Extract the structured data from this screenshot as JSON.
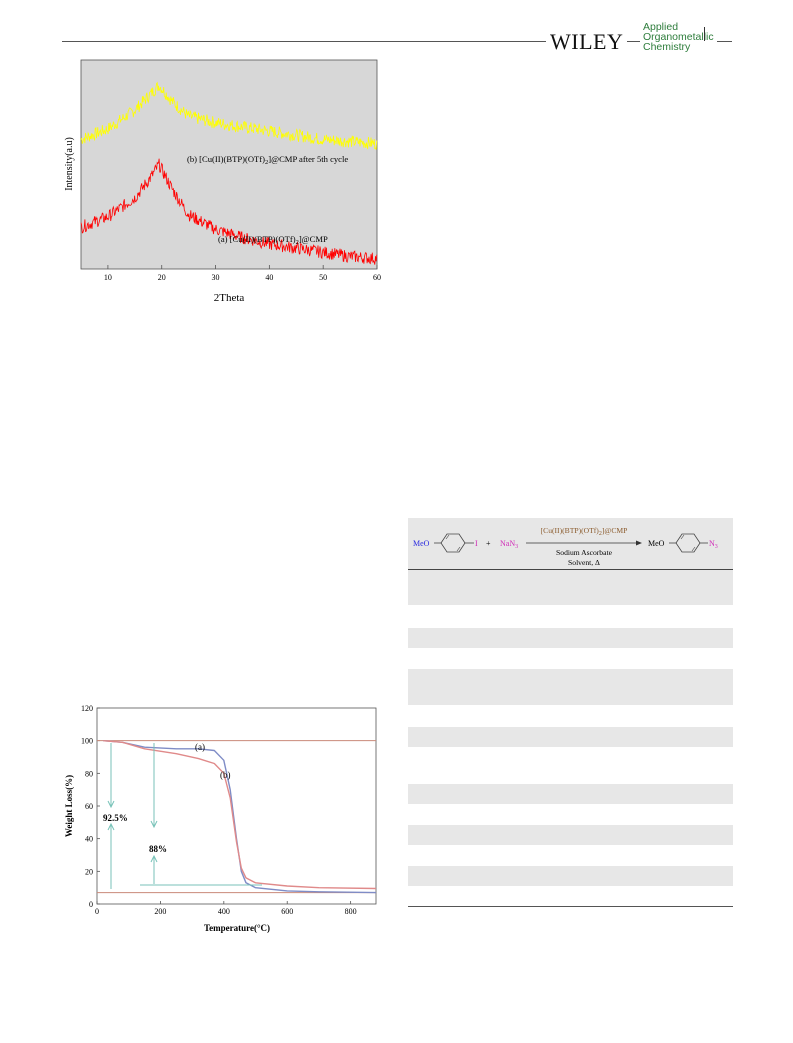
{
  "header": {
    "publisher": "WILEY",
    "journal_line1": "Applied",
    "journal_line2": "Organometallic",
    "journal_line3": "Chemistry"
  },
  "figures": {
    "xrd": {
      "chart_data": {
        "type": "line",
        "xlabel": "2Theta",
        "ylabel": "Intensity(a.u)",
        "xlim": [
          5,
          60
        ],
        "x_ticks": [
          "10",
          "20",
          "30",
          "40",
          "50",
          "60"
        ],
        "grid": false,
        "series": [
          {
            "name": "(b)  [Cu(II)(BTP)(OTf)2]@CMP after 5th cycle",
            "color": "#ffff00",
            "x": [
              5,
              10,
              15,
              18,
              19.5,
              22,
              25,
              30,
              35,
              40,
              45,
              50,
              55,
              60
            ],
            "y": [
              0.62,
              0.67,
              0.76,
              0.84,
              0.88,
              0.8,
              0.73,
              0.7,
              0.68,
              0.66,
              0.64,
              0.62,
              0.61,
              0.6
            ]
          },
          {
            "name": "(a) [Cu(II)(BTP)(OTf)2]@CMP",
            "color": "#ff0000",
            "x": [
              5,
              10,
              15,
              18,
              19.5,
              22,
              25,
              30,
              35,
              40,
              45,
              50,
              55,
              60
            ],
            "y": [
              0.2,
              0.25,
              0.34,
              0.44,
              0.5,
              0.38,
              0.26,
              0.19,
              0.15,
              0.12,
              0.1,
              0.08,
              0.06,
              0.05
            ]
          }
        ]
      }
    },
    "tga": {
      "chart_data": {
        "type": "line",
        "xlabel": "Temperature(°C)",
        "ylabel": "Weight Loss(%)",
        "xlim": [
          0,
          880
        ],
        "ylim": [
          0,
          120
        ],
        "x_ticks": [
          "0",
          "200",
          "400",
          "600",
          "800"
        ],
        "y_ticks": [
          "0",
          "20",
          "40",
          "60",
          "80",
          "100",
          "120"
        ],
        "grid": false,
        "series": [
          {
            "name": "(a)",
            "color": "#7f8cc6",
            "x": [
              20,
              80,
              150,
              250,
              320,
              370,
              400,
              420,
              440,
              455,
              470,
              500,
              600,
              700,
              880
            ],
            "y": [
              100,
              99,
              96,
              95,
              95,
              94,
              88,
              70,
              40,
              20,
              13,
              10,
              8,
              7.5,
              7
            ]
          },
          {
            "name": "(b)",
            "color": "#e08a8a",
            "x": [
              20,
              80,
              150,
              250,
              320,
              370,
              400,
              420,
              440,
              455,
              470,
              500,
              600,
              700,
              880
            ],
            "y": [
              100,
              99,
              95,
              92,
              89,
              86,
              80,
              65,
              38,
              22,
              16,
              13,
              11,
              10,
              9.5
            ]
          }
        ],
        "reference_lines": {
          "upper_y": 100,
          "lower_y": 7
        },
        "annotations": [
          "92.5%",
          "88%"
        ]
      }
    }
  },
  "scheme": {
    "reactant1_left": "MeO",
    "reactant1_right": "I",
    "plus": "+",
    "reagent_left": "NaN",
    "reagent_sub": "3",
    "catalyst_pre": "[Cu(II)(BTP)(OTf)",
    "catalyst_sub": "2",
    "catalyst_post": "]@CMP",
    "condition1": "Sodium Ascorbate",
    "condition2": "Solvent, Δ",
    "product_left": "MeO",
    "product_right": "N",
    "product_sub": "3"
  }
}
